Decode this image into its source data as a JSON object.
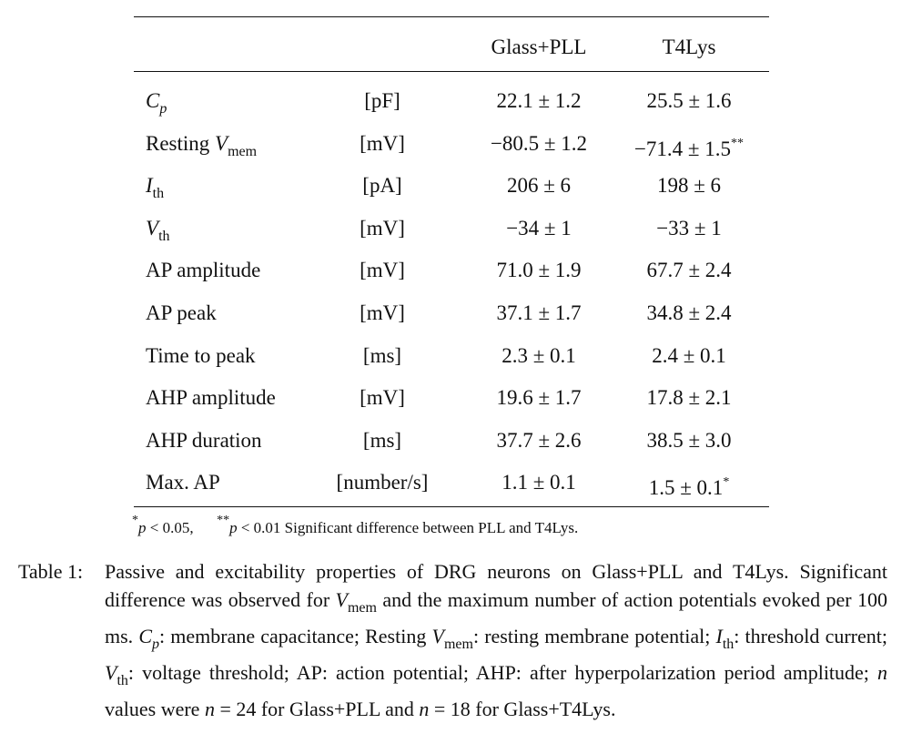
{
  "table": {
    "header": [
      "Glass+PLL",
      "T4Lys"
    ],
    "rows": [
      {
        "label": [
          {
            "text": "C",
            "style": "italic"
          },
          {
            "text": "p",
            "style": "sub-italic"
          }
        ],
        "unit": "[pF]",
        "glass": "22.1 ± 1.2",
        "t4lys": "25.5 ± 1.6"
      },
      {
        "label": [
          {
            "text": "Resting ",
            "style": "normal"
          },
          {
            "text": "V",
            "style": "italic"
          },
          {
            "text": "mem",
            "style": "sub"
          }
        ],
        "unit": "[mV]",
        "glass": "−80.5 ± 1.2",
        "t4lys": "−71.4 ± 1.5",
        "t4lys_sig": "**"
      },
      {
        "label": [
          {
            "text": "I",
            "style": "italic"
          },
          {
            "text": "th",
            "style": "sub"
          }
        ],
        "unit": "[pA]",
        "glass": "206 ± 6",
        "t4lys": "198 ± 6"
      },
      {
        "label": [
          {
            "text": "V",
            "style": "italic"
          },
          {
            "text": "th",
            "style": "sub"
          }
        ],
        "unit": "[mV]",
        "glass": "−34 ± 1",
        "t4lys": "−33 ± 1"
      },
      {
        "label": [
          {
            "text": "AP amplitude",
            "style": "normal"
          }
        ],
        "unit": "[mV]",
        "glass": "71.0 ± 1.9",
        "t4lys": "67.7 ± 2.4"
      },
      {
        "label": [
          {
            "text": "AP peak",
            "style": "normal"
          }
        ],
        "unit": "[mV]",
        "glass": "37.1 ± 1.7",
        "t4lys": "34.8 ± 2.4"
      },
      {
        "label": [
          {
            "text": "Time to peak",
            "style": "normal"
          }
        ],
        "unit": "[ms]",
        "glass": "2.3 ± 0.1",
        "t4lys": "2.4 ± 0.1"
      },
      {
        "label": [
          {
            "text": "AHP amplitude",
            "style": "normal"
          }
        ],
        "unit": "[mV]",
        "glass": "19.6 ± 1.7",
        "t4lys": "17.8 ± 2.1"
      },
      {
        "label": [
          {
            "text": "AHP duration",
            "style": "normal"
          }
        ],
        "unit": "[ms]",
        "glass": "37.7 ± 2.6",
        "t4lys": "38.5 ± 3.0"
      },
      {
        "label": [
          {
            "text": "Max. AP",
            "style": "normal"
          }
        ],
        "unit": "[number/s]",
        "glass": "1.1 ± 0.1",
        "t4lys": "1.5 ± 0.1",
        "t4lys_sig": "*"
      }
    ],
    "footnote": [
      {
        "text": "*",
        "style": "sup"
      },
      {
        "text": "p",
        "style": "italic"
      },
      {
        "text": " < 0.05,      ",
        "style": "normal"
      },
      {
        "text": "**",
        "style": "sup"
      },
      {
        "text": "p",
        "style": "italic"
      },
      {
        "text": " < 0.01 Significant difference between PLL and T4Lys.",
        "style": "normal"
      }
    ]
  },
  "caption": {
    "label": "Table 1:",
    "segments": [
      {
        "text": "Passive and excitability properties of DRG neurons on Glass+PLL and T4Lys. Significant difference was observed for ",
        "style": "normal"
      },
      {
        "text": "V",
        "style": "italic"
      },
      {
        "text": "mem",
        "style": "sub"
      },
      {
        "text": " and the maximum number of action potentials evoked per 100 ms. ",
        "style": "normal"
      },
      {
        "text": "C",
        "style": "italic"
      },
      {
        "text": "p",
        "style": "sub-italic"
      },
      {
        "text": ": membrane capacitance; Resting ",
        "style": "normal"
      },
      {
        "text": "V",
        "style": "italic"
      },
      {
        "text": "mem",
        "style": "sub"
      },
      {
        "text": ": resting membrane potential; ",
        "style": "normal"
      },
      {
        "text": "I",
        "style": "italic"
      },
      {
        "text": "th",
        "style": "sub"
      },
      {
        "text": ": threshold current; ",
        "style": "normal"
      },
      {
        "text": "V",
        "style": "italic"
      },
      {
        "text": "th",
        "style": "sub"
      },
      {
        "text": ": voltage threshold; AP: action potential; AHP: after hyperpolarization period amplitude; ",
        "style": "normal"
      },
      {
        "text": "n",
        "style": "italic"
      },
      {
        "text": " values were ",
        "style": "normal"
      },
      {
        "text": "n",
        "style": "italic"
      },
      {
        "text": " = 24 for Glass+PLL and ",
        "style": "normal"
      },
      {
        "text": "n",
        "style": "italic"
      },
      {
        "text": " = 18 for Glass+T4Lys.",
        "style": "normal"
      }
    ]
  }
}
